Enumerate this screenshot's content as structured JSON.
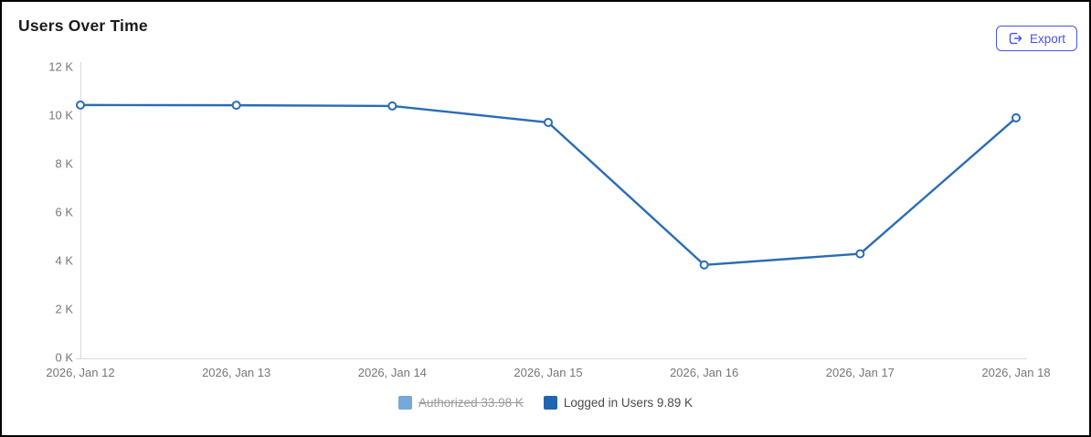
{
  "header": {
    "title": "Users Over Time",
    "export_label": "Export"
  },
  "colors": {
    "accent": "#4953e8",
    "line": "#2a6cb5",
    "authorized_swatch": "#74a9da",
    "logged_in_swatch": "#2264ad",
    "axis_line": "#d8d8d8",
    "axis_label": "#767676"
  },
  "legend": {
    "items": [
      {
        "id": "authorized",
        "label": "Authorized 33.98 K",
        "color": "#74a9da",
        "disabled": true
      },
      {
        "id": "logged-in-users",
        "label": "Logged in Users 9.89 K",
        "color": "#2264ad",
        "disabled": false
      }
    ]
  },
  "chart_data": {
    "type": "line",
    "title": "Users Over Time",
    "x": [
      "2026, Jan 12",
      "2026, Jan 13",
      "2026, Jan 14",
      "2026, Jan 15",
      "2026, Jan 16",
      "2026, Jan 17",
      "2026, Jan 18"
    ],
    "unit": "K",
    "series": [
      {
        "name": "Authorized",
        "visible": false,
        "latest_value_label": "33.98 K",
        "values": []
      },
      {
        "name": "Logged in Users",
        "visible": true,
        "latest_value_label": "9.89 K",
        "values": [
          10.42,
          10.41,
          10.38,
          9.7,
          3.82,
          4.28,
          9.89
        ]
      }
    ],
    "xlabel": "",
    "ylabel": "",
    "ylim": [
      0,
      12
    ],
    "y_tick_step": 2,
    "y_ticks": [
      "0 K",
      "2 K",
      "4 K",
      "6 K",
      "8 K",
      "10 K",
      "12 K"
    ],
    "grid": false,
    "markers": "open-circle",
    "legend_position": "bottom"
  }
}
